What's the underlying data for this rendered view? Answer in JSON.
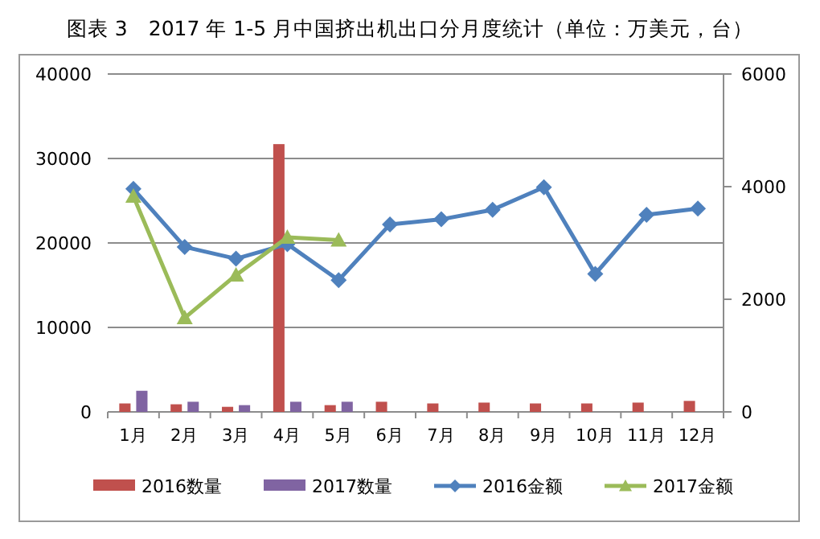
{
  "chart_data": {
    "type": "bar",
    "title": "图表 3　2017 年 1-5 月中国挤出机出口分月度统计（单位：万美元，台）",
    "categories": [
      "1月",
      "2月",
      "3月",
      "4月",
      "5月",
      "6月",
      "7月",
      "8月",
      "9月",
      "10月",
      "11月",
      "12月"
    ],
    "series": [
      {
        "name": "2016数量",
        "color": "#c0504d",
        "values": [
          1000,
          900,
          600,
          31700,
          800,
          1200,
          1000,
          1100,
          1000,
          1000,
          1100,
          1300
        ]
      },
      {
        "name": "2017数量",
        "color": "#8064a2",
        "values": [
          2500,
          1200,
          800,
          1200,
          1200,
          null,
          null,
          null,
          null,
          null,
          null,
          null
        ]
      },
      {
        "name": "2016金额",
        "type": "line",
        "axis": "y2",
        "marker": "diamond",
        "color": "#4f81bd",
        "values": [
          3960,
          2930,
          2720,
          2980,
          2340,
          3330,
          3420,
          3590,
          3990,
          2450,
          3500,
          3610
        ]
      },
      {
        "name": "2017金额",
        "type": "line",
        "axis": "y2",
        "marker": "triangle",
        "color": "#9bbb59",
        "values": [
          3830,
          1670,
          2430,
          3100,
          3050,
          null,
          null,
          null,
          null,
          null,
          null,
          null
        ]
      }
    ],
    "ylim": [
      0,
      40000
    ],
    "yticks": [
      0,
      10000,
      20000,
      30000,
      40000
    ],
    "y2lim": [
      0,
      6000
    ],
    "y2ticks": [
      0,
      2000,
      4000,
      6000
    ],
    "grid": "y",
    "legend": "bottom"
  }
}
